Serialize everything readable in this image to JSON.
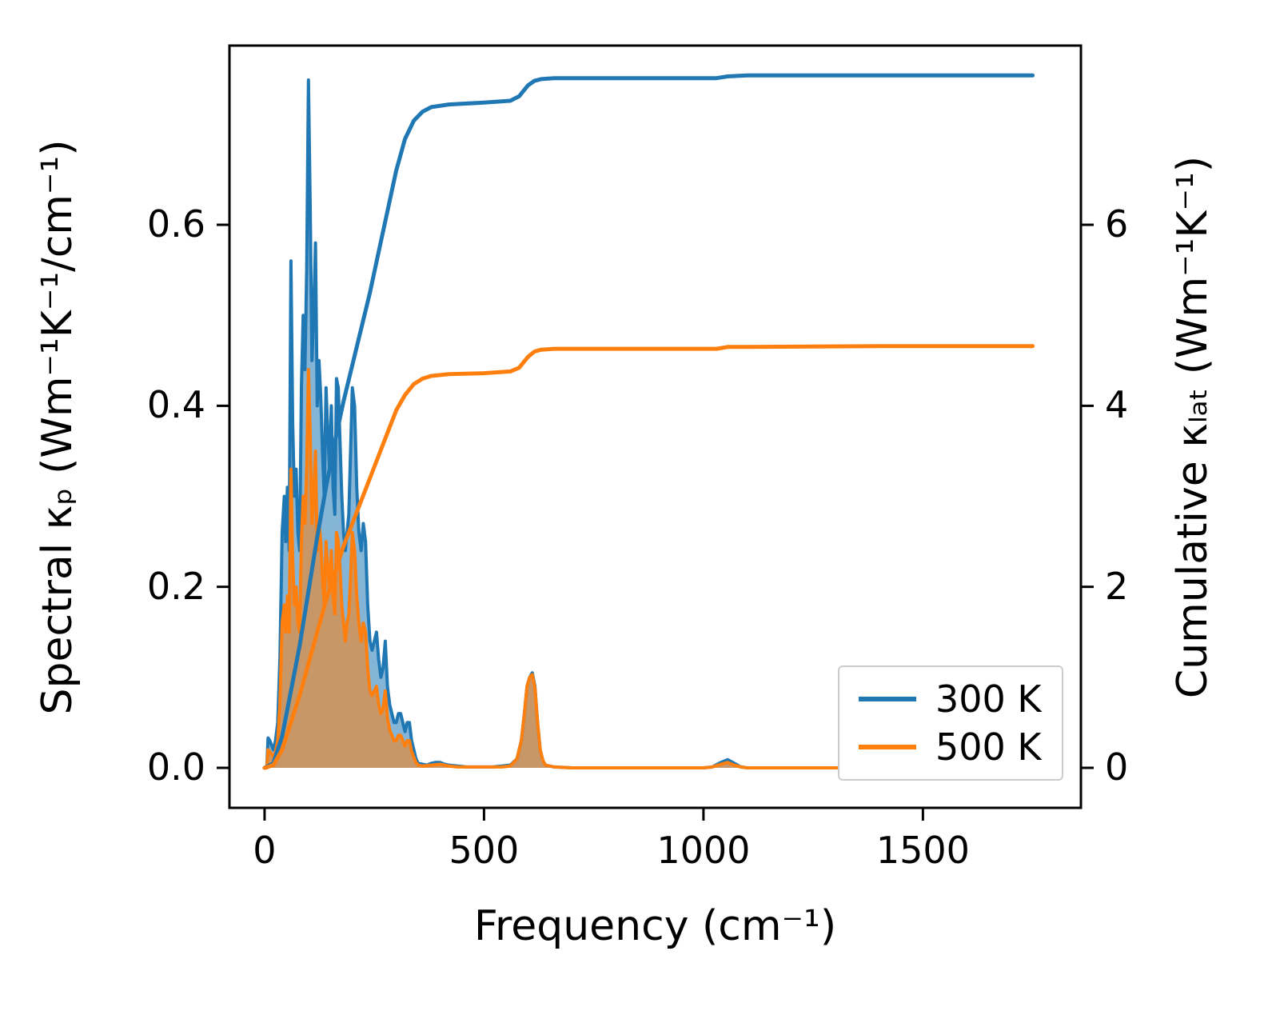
{
  "figure": {
    "background": "#ffffff"
  },
  "axes": {
    "xlabel": "Frequency (cm⁻¹)",
    "ylabel_left": "Spectral κₚ (Wm⁻¹K⁻¹/cm⁻¹)",
    "ylabel_right": "Cumulative κₗₐₜ (Wm⁻¹K⁻¹)"
  },
  "legend": {
    "entries": [
      {
        "label": "300 K",
        "color": "#1f77b4"
      },
      {
        "label": "500 K",
        "color": "#ff7f0e"
      }
    ]
  },
  "chart_data": {
    "type": "line",
    "title": "",
    "xlabel": "Frequency (cm⁻¹)",
    "ylabel_left": "Spectral κₚ (Wm⁻¹K⁻¹/cm⁻¹)",
    "ylabel_right": "Cumulative κₗₐₜ (Wm⁻¹K⁻¹)",
    "xlim": [
      -80,
      1860
    ],
    "ylim_left": [
      -0.0442,
      0.798
    ],
    "ylim_right": [
      -0.442,
      7.98
    ],
    "grid": false,
    "legend_position": "lower right",
    "x_ticks": [
      0,
      500,
      1000,
      1500
    ],
    "x_tick_labels": [
      "0",
      "500",
      "1000",
      "1500"
    ],
    "y_ticks_left": [
      0.0,
      0.2,
      0.4,
      0.6
    ],
    "y_tick_labels_left": [
      "0.0",
      "0.2",
      "0.4",
      "0.6"
    ],
    "y_ticks_right": [
      0,
      2,
      4,
      6
    ],
    "y_tick_labels_right": [
      "0",
      "2",
      "4",
      "6"
    ],
    "series": [
      {
        "name": "spectral_kappa_300K",
        "legend": "300 K",
        "axis": "left",
        "style": "area",
        "color": "#1f77b4",
        "fill_opacity": 0.55,
        "points": [
          [
            5,
            0
          ],
          [
            8,
            0.033
          ],
          [
            12,
            0.03
          ],
          [
            16,
            0.025
          ],
          [
            20,
            0.02
          ],
          [
            25,
            0.03
          ],
          [
            30,
            0.05
          ],
          [
            35,
            0.12
          ],
          [
            40,
            0.26
          ],
          [
            45,
            0.3
          ],
          [
            48,
            0.25
          ],
          [
            52,
            0.31
          ],
          [
            56,
            0.24
          ],
          [
            60,
            0.56
          ],
          [
            64,
            0.38
          ],
          [
            68,
            0.3
          ],
          [
            72,
            0.33
          ],
          [
            76,
            0.26
          ],
          [
            80,
            0.24
          ],
          [
            84,
            0.42
          ],
          [
            88,
            0.5
          ],
          [
            92,
            0.44
          ],
          [
            96,
            0.55
          ],
          [
            100,
            0.76
          ],
          [
            104,
            0.62
          ],
          [
            108,
            0.45
          ],
          [
            112,
            0.5
          ],
          [
            116,
            0.58
          ],
          [
            120,
            0.4
          ],
          [
            124,
            0.45
          ],
          [
            128,
            0.41
          ],
          [
            132,
            0.35
          ],
          [
            136,
            0.3
          ],
          [
            140,
            0.42
          ],
          [
            144,
            0.37
          ],
          [
            148,
            0.33
          ],
          [
            152,
            0.4
          ],
          [
            156,
            0.31
          ],
          [
            160,
            0.28
          ],
          [
            164,
            0.43
          ],
          [
            168,
            0.42
          ],
          [
            172,
            0.36
          ],
          [
            176,
            0.3
          ],
          [
            180,
            0.26
          ],
          [
            184,
            0.24
          ],
          [
            188,
            0.26
          ],
          [
            192,
            0.28
          ],
          [
            196,
            0.35
          ],
          [
            200,
            0.42
          ],
          [
            205,
            0.4
          ],
          [
            210,
            0.31
          ],
          [
            215,
            0.26
          ],
          [
            220,
            0.24
          ],
          [
            225,
            0.27
          ],
          [
            230,
            0.25
          ],
          [
            235,
            0.18
          ],
          [
            240,
            0.14
          ],
          [
            245,
            0.13
          ],
          [
            250,
            0.14
          ],
          [
            255,
            0.15
          ],
          [
            260,
            0.12
          ],
          [
            265,
            0.1
          ],
          [
            270,
            0.11
          ],
          [
            275,
            0.14
          ],
          [
            280,
            0.09
          ],
          [
            285,
            0.07
          ],
          [
            290,
            0.06
          ],
          [
            295,
            0.05
          ],
          [
            300,
            0.05
          ],
          [
            305,
            0.06
          ],
          [
            310,
            0.06
          ],
          [
            315,
            0.05
          ],
          [
            320,
            0.04
          ],
          [
            325,
            0.05
          ],
          [
            330,
            0.05
          ],
          [
            335,
            0.03
          ],
          [
            340,
            0.02
          ],
          [
            345,
            0.01
          ],
          [
            350,
            0.005
          ],
          [
            360,
            0.004
          ],
          [
            370,
            0.003
          ],
          [
            380,
            0.005
          ],
          [
            390,
            0.006
          ],
          [
            400,
            0.006
          ],
          [
            410,
            0.004
          ],
          [
            420,
            0.003
          ],
          [
            440,
            0.002
          ],
          [
            460,
            0.001
          ],
          [
            480,
            0.001
          ],
          [
            500,
            0.001
          ],
          [
            520,
            0.001
          ],
          [
            540,
            0.002
          ],
          [
            560,
            0.003
          ],
          [
            575,
            0.01
          ],
          [
            585,
            0.03
          ],
          [
            592,
            0.06
          ],
          [
            598,
            0.09
          ],
          [
            604,
            0.1
          ],
          [
            610,
            0.105
          ],
          [
            616,
            0.09
          ],
          [
            622,
            0.05
          ],
          [
            628,
            0.02
          ],
          [
            634,
            0.008
          ],
          [
            640,
            0.003
          ],
          [
            660,
            0.001
          ],
          [
            700,
            0
          ],
          [
            800,
            0
          ],
          [
            1000,
            0
          ],
          [
            1020,
            0.001
          ],
          [
            1040,
            0.006
          ],
          [
            1055,
            0.009
          ],
          [
            1070,
            0.005
          ],
          [
            1085,
            0.001
          ],
          [
            1100,
            0
          ],
          [
            1300,
            0
          ],
          [
            1750,
            0
          ]
        ]
      },
      {
        "name": "spectral_kappa_500K",
        "legend": "500 K",
        "axis": "left",
        "style": "area",
        "color": "#ff7f0e",
        "fill_opacity": 0.55,
        "points": [
          [
            5,
            0
          ],
          [
            8,
            0.02
          ],
          [
            12,
            0.018
          ],
          [
            16,
            0.015
          ],
          [
            20,
            0.012
          ],
          [
            25,
            0.018
          ],
          [
            30,
            0.03
          ],
          [
            35,
            0.07
          ],
          [
            40,
            0.16
          ],
          [
            45,
            0.18
          ],
          [
            48,
            0.15
          ],
          [
            52,
            0.19
          ],
          [
            56,
            0.15
          ],
          [
            60,
            0.33
          ],
          [
            64,
            0.23
          ],
          [
            68,
            0.18
          ],
          [
            72,
            0.2
          ],
          [
            76,
            0.16
          ],
          [
            80,
            0.15
          ],
          [
            84,
            0.25
          ],
          [
            88,
            0.3
          ],
          [
            92,
            0.27
          ],
          [
            96,
            0.33
          ],
          [
            100,
            0.44
          ],
          [
            104,
            0.37
          ],
          [
            108,
            0.27
          ],
          [
            112,
            0.3
          ],
          [
            116,
            0.35
          ],
          [
            120,
            0.24
          ],
          [
            124,
            0.27
          ],
          [
            128,
            0.25
          ],
          [
            132,
            0.21
          ],
          [
            136,
            0.18
          ],
          [
            140,
            0.25
          ],
          [
            144,
            0.22
          ],
          [
            148,
            0.2
          ],
          [
            152,
            0.24
          ],
          [
            156,
            0.19
          ],
          [
            160,
            0.17
          ],
          [
            164,
            0.26
          ],
          [
            168,
            0.25
          ],
          [
            172,
            0.22
          ],
          [
            176,
            0.18
          ],
          [
            180,
            0.16
          ],
          [
            184,
            0.14
          ],
          [
            188,
            0.16
          ],
          [
            192,
            0.17
          ],
          [
            196,
            0.21
          ],
          [
            200,
            0.26
          ],
          [
            205,
            0.24
          ],
          [
            210,
            0.19
          ],
          [
            215,
            0.16
          ],
          [
            220,
            0.14
          ],
          [
            225,
            0.16
          ],
          [
            230,
            0.15
          ],
          [
            235,
            0.11
          ],
          [
            240,
            0.085
          ],
          [
            245,
            0.08
          ],
          [
            250,
            0.085
          ],
          [
            255,
            0.09
          ],
          [
            260,
            0.07
          ],
          [
            265,
            0.06
          ],
          [
            270,
            0.065
          ],
          [
            275,
            0.085
          ],
          [
            280,
            0.055
          ],
          [
            285,
            0.042
          ],
          [
            290,
            0.036
          ],
          [
            295,
            0.03
          ],
          [
            300,
            0.03
          ],
          [
            305,
            0.036
          ],
          [
            310,
            0.036
          ],
          [
            315,
            0.03
          ],
          [
            320,
            0.024
          ],
          [
            325,
            0.03
          ],
          [
            330,
            0.03
          ],
          [
            335,
            0.018
          ],
          [
            340,
            0.012
          ],
          [
            345,
            0.006
          ],
          [
            350,
            0.003
          ],
          [
            360,
            0.002
          ],
          [
            380,
            0.003
          ],
          [
            400,
            0.004
          ],
          [
            420,
            0.002
          ],
          [
            440,
            0.001
          ],
          [
            500,
            0.001
          ],
          [
            540,
            0.001
          ],
          [
            560,
            0.002
          ],
          [
            575,
            0.01
          ],
          [
            585,
            0.03
          ],
          [
            592,
            0.06
          ],
          [
            598,
            0.09
          ],
          [
            604,
            0.1
          ],
          [
            610,
            0.103
          ],
          [
            616,
            0.088
          ],
          [
            622,
            0.05
          ],
          [
            628,
            0.02
          ],
          [
            634,
            0.008
          ],
          [
            640,
            0.003
          ],
          [
            660,
            0.001
          ],
          [
            700,
            0
          ],
          [
            1000,
            0
          ],
          [
            1020,
            0.001
          ],
          [
            1040,
            0.004
          ],
          [
            1055,
            0.006
          ],
          [
            1070,
            0.003
          ],
          [
            1085,
            0.001
          ],
          [
            1100,
            0
          ],
          [
            1300,
            0
          ],
          [
            1750,
            0
          ]
        ]
      },
      {
        "name": "cumulative_kappa_300K",
        "legend": "300 K",
        "axis": "right",
        "style": "line",
        "color": "#1f77b4",
        "points": [
          [
            0,
            0
          ],
          [
            20,
            0.05
          ],
          [
            40,
            0.35
          ],
          [
            60,
            0.85
          ],
          [
            80,
            1.35
          ],
          [
            100,
            1.95
          ],
          [
            120,
            2.55
          ],
          [
            140,
            3.1
          ],
          [
            160,
            3.6
          ],
          [
            180,
            4.05
          ],
          [
            200,
            4.45
          ],
          [
            220,
            4.85
          ],
          [
            240,
            5.25
          ],
          [
            260,
            5.7
          ],
          [
            280,
            6.15
          ],
          [
            300,
            6.6
          ],
          [
            320,
            6.95
          ],
          [
            340,
            7.15
          ],
          [
            360,
            7.25
          ],
          [
            380,
            7.3
          ],
          [
            420,
            7.33
          ],
          [
            500,
            7.35
          ],
          [
            560,
            7.37
          ],
          [
            580,
            7.42
          ],
          [
            600,
            7.54
          ],
          [
            615,
            7.59
          ],
          [
            630,
            7.61
          ],
          [
            660,
            7.62
          ],
          [
            800,
            7.62
          ],
          [
            1030,
            7.62
          ],
          [
            1055,
            7.64
          ],
          [
            1100,
            7.65
          ],
          [
            1400,
            7.65
          ],
          [
            1750,
            7.65
          ]
        ]
      },
      {
        "name": "cumulative_kappa_500K",
        "legend": "500 K",
        "axis": "right",
        "style": "line",
        "color": "#ff7f0e",
        "points": [
          [
            0,
            0
          ],
          [
            20,
            0.03
          ],
          [
            40,
            0.2
          ],
          [
            60,
            0.5
          ],
          [
            80,
            0.8
          ],
          [
            100,
            1.15
          ],
          [
            120,
            1.5
          ],
          [
            140,
            1.85
          ],
          [
            160,
            2.15
          ],
          [
            180,
            2.45
          ],
          [
            200,
            2.7
          ],
          [
            220,
            2.95
          ],
          [
            240,
            3.2
          ],
          [
            260,
            3.45
          ],
          [
            280,
            3.7
          ],
          [
            300,
            3.95
          ],
          [
            320,
            4.12
          ],
          [
            340,
            4.24
          ],
          [
            360,
            4.3
          ],
          [
            380,
            4.33
          ],
          [
            420,
            4.35
          ],
          [
            500,
            4.36
          ],
          [
            560,
            4.38
          ],
          [
            580,
            4.42
          ],
          [
            600,
            4.54
          ],
          [
            615,
            4.6
          ],
          [
            630,
            4.62
          ],
          [
            660,
            4.63
          ],
          [
            800,
            4.63
          ],
          [
            1030,
            4.63
          ],
          [
            1055,
            4.65
          ],
          [
            1100,
            4.65
          ],
          [
            1400,
            4.66
          ],
          [
            1750,
            4.66
          ]
        ]
      }
    ]
  }
}
